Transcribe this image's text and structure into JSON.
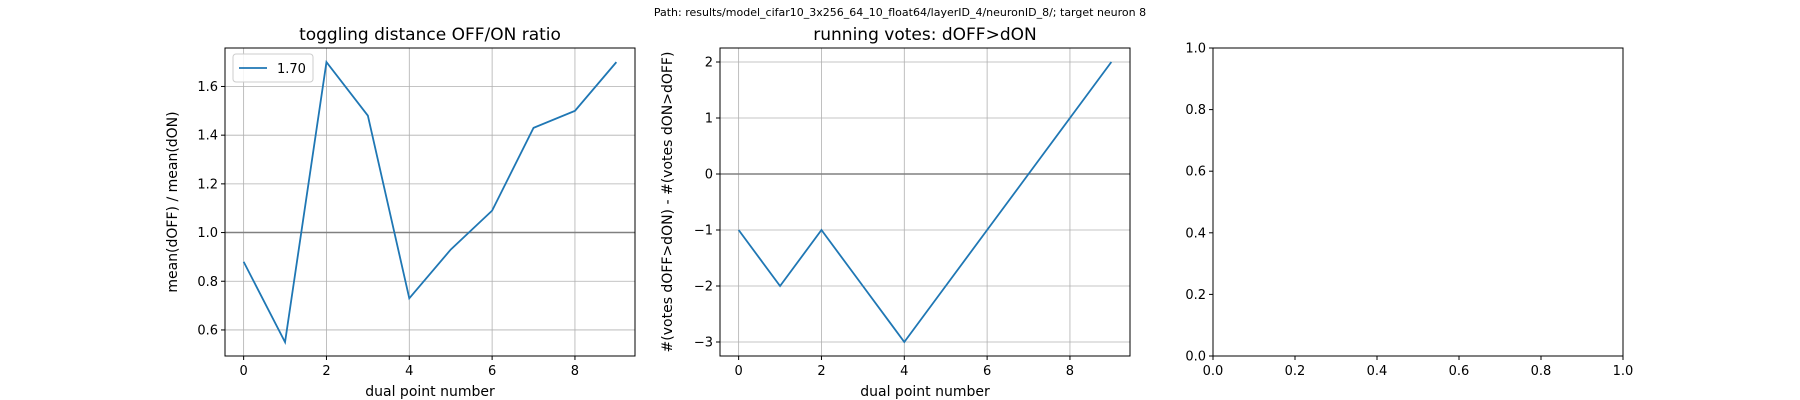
{
  "figure": {
    "suptitle": "Path: results/model_cifar10_3x256_64_10_float64/layerID_4/neuronID_8/; target neuron 8"
  },
  "colors": {
    "series": "#1f77b4",
    "reference_line": "#808080",
    "grid": "#b0b0b0",
    "axes": "#000000",
    "background": "#ffffff"
  },
  "chart_data": [
    {
      "type": "line",
      "title": "toggling distance OFF/ON ratio",
      "xlabel": "dual point number",
      "ylabel": "mean(dOFF) / mean(dON)",
      "xlim": [
        -0.45,
        9.45
      ],
      "ylim": [
        0.493,
        1.758
      ],
      "xticks": [
        0,
        2,
        4,
        6,
        8
      ],
      "yticks": [
        0.6,
        0.8,
        1.0,
        1.2,
        1.4,
        1.6
      ],
      "ytick_labels": [
        "0.6",
        "0.8",
        "1.0",
        "1.2",
        "1.4",
        "1.6"
      ],
      "grid": true,
      "hline": 1.0,
      "legend": {
        "placement": "upper left",
        "entries": [
          "1.70"
        ]
      },
      "series": [
        {
          "name": "1.70",
          "x": [
            0,
            1,
            2,
            3,
            4,
            5,
            6,
            7,
            8,
            9
          ],
          "y": [
            0.88,
            0.55,
            1.7,
            1.48,
            0.73,
            0.93,
            1.09,
            1.43,
            1.5,
            1.7
          ]
        }
      ]
    },
    {
      "type": "line",
      "title": "running votes: dOFF>dON",
      "xlabel": "dual point number",
      "ylabel": "#(votes dOFF>dON) - #(votes dON>dOFF)",
      "xlim": [
        -0.45,
        9.45
      ],
      "ylim": [
        -3.25,
        2.25
      ],
      "xticks": [
        0,
        2,
        4,
        6,
        8
      ],
      "yticks": [
        -3,
        -2,
        -1,
        0,
        1,
        2
      ],
      "ytick_labels": [
        "−3",
        "−2",
        "−1",
        "0",
        "1",
        "2"
      ],
      "grid": true,
      "hline": 0,
      "legend": null,
      "series": [
        {
          "x": [
            0,
            1,
            2,
            3,
            4,
            5,
            6,
            7,
            8,
            9
          ],
          "y": [
            -1,
            -2,
            -1,
            -2,
            -3,
            -2,
            -1,
            0,
            1,
            2
          ]
        }
      ]
    },
    {
      "type": "line",
      "title": "",
      "xlabel": "",
      "ylabel": "",
      "xlim": [
        0,
        1
      ],
      "ylim": [
        0,
        1
      ],
      "xticks": [
        0.0,
        0.2,
        0.4,
        0.6,
        0.8,
        1.0
      ],
      "yticks": [
        0.0,
        0.2,
        0.4,
        0.6,
        0.8,
        1.0
      ],
      "xtick_labels": [
        "0.0",
        "0.2",
        "0.4",
        "0.6",
        "0.8",
        "1.0"
      ],
      "ytick_labels": [
        "0.0",
        "0.2",
        "0.4",
        "0.6",
        "0.8",
        "1.0"
      ],
      "grid": false,
      "hline": null,
      "legend": null,
      "series": []
    }
  ]
}
